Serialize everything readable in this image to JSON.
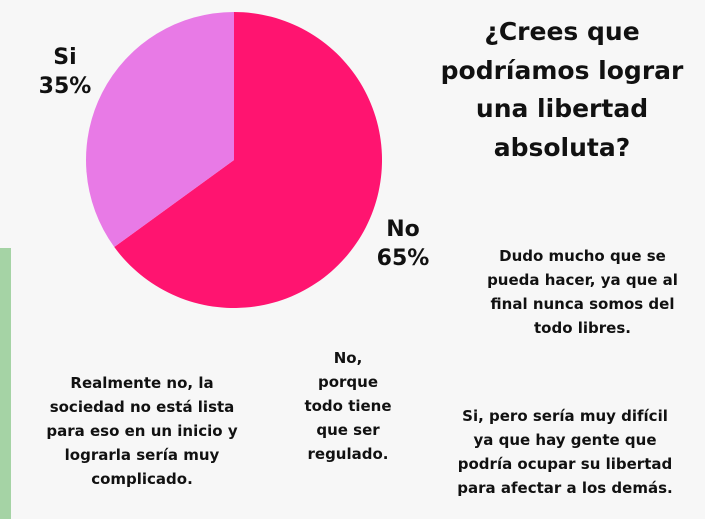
{
  "title_lines": [
    "¿Crees que",
    "podríamos lograr",
    "una libertad",
    "absoluta?"
  ],
  "chart_data": {
    "type": "pie",
    "title": "¿Crees que podríamos lograr una libertad absoluta?",
    "slices": [
      {
        "name": "No",
        "value": 65,
        "label": "65%",
        "color": "#ff1470"
      },
      {
        "name": "Si",
        "value": 35,
        "label": "35%",
        "color": "#e87ae6"
      }
    ],
    "legend": "none"
  },
  "comments": [
    {
      "lines": [
        "Dudo mucho que se",
        "pueda hacer, ya que al",
        "final nunca somos del",
        "todo libres."
      ]
    },
    {
      "lines": [
        "Realmente no, la",
        "sociedad no está lista",
        "para eso en un inicio y",
        "lograrla sería muy",
        "complicado."
      ]
    },
    {
      "lines": [
        "No,",
        "porque",
        "todo tiene",
        "que ser",
        "regulado."
      ]
    },
    {
      "lines": [
        "Si, pero sería muy difícil",
        "ya que hay gente que",
        "podría ocupar su libertad",
        "para afectar a los demás."
      ]
    }
  ],
  "colors": {
    "background": "#f7f7f7",
    "accent_strip": "#a5d3a5",
    "text": "#111111"
  }
}
